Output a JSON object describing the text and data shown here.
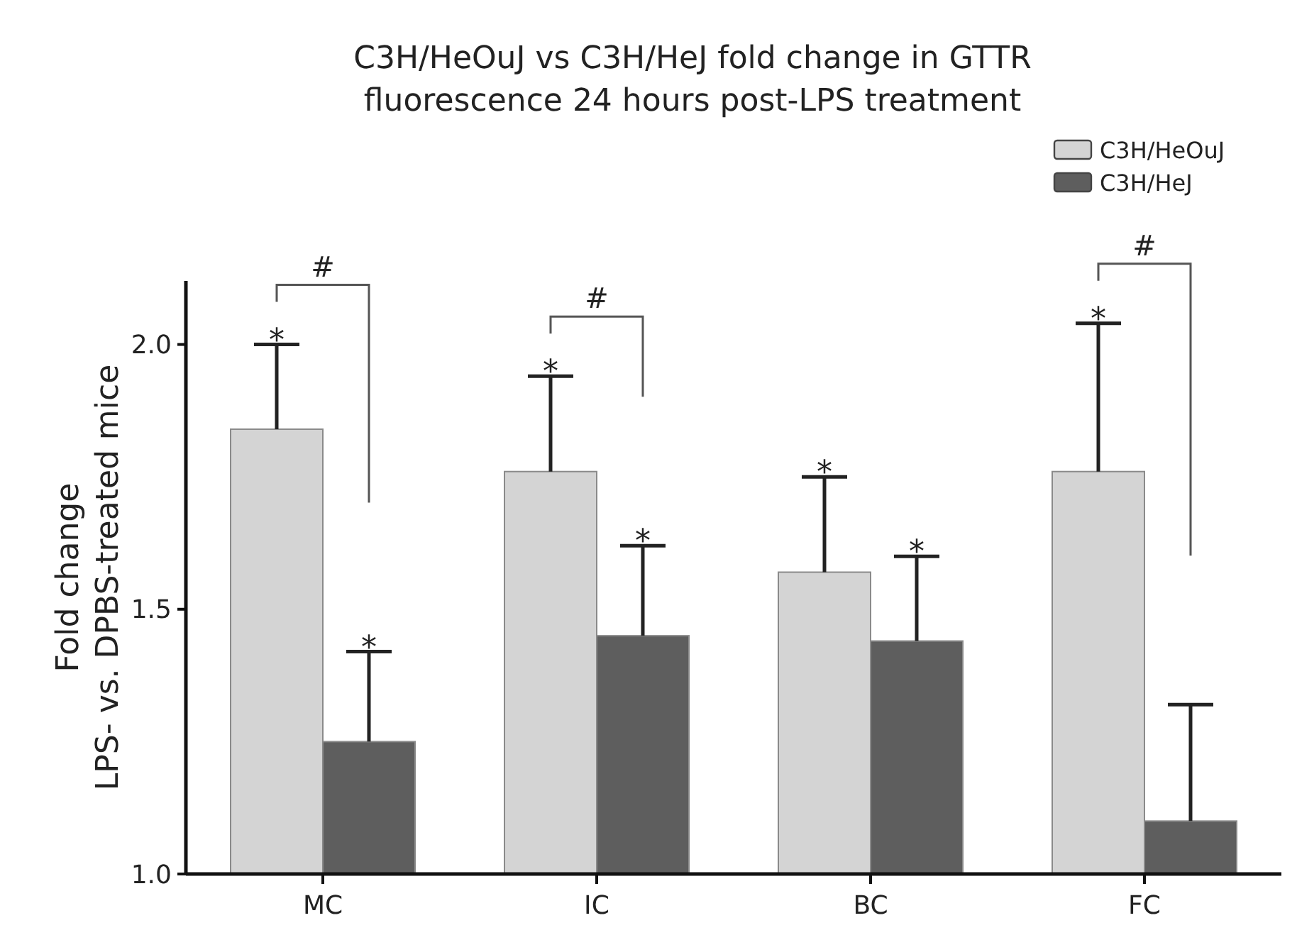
{
  "chart_data": {
    "type": "bar",
    "title": "C3H/HeOuJ vs C3H/HeJ fold change in GTTR\nfluorescence 24 hours post-LPS treatment",
    "ylabel": "Fold change\nLPS- vs. DPBS-treated mice",
    "categories": [
      "MC",
      "IC",
      "BC",
      "FC"
    ],
    "series": [
      {
        "name": "C3H/HeOuJ",
        "color": "#d4d4d4",
        "values": [
          1.84,
          1.76,
          1.57,
          1.76
        ],
        "errors": [
          [
            1.84,
            2.0
          ],
          [
            1.76,
            1.94
          ],
          [
            1.57,
            1.75
          ],
          [
            1.76,
            2.04
          ]
        ]
      },
      {
        "name": "C3H/HeJ",
        "color": "#5e5e5e",
        "values": [
          1.25,
          1.45,
          1.44,
          1.1
        ],
        "errors": [
          [
            1.25,
            1.42
          ],
          [
            1.45,
            1.62
          ],
          [
            1.44,
            1.6
          ],
          [
            1.1,
            1.32
          ]
        ]
      }
    ],
    "annotations": [
      "*",
      "*",
      "*",
      "*",
      "*",
      "*",
      "*",
      "#",
      "#",
      "#"
    ],
    "ylim": [
      1.0,
      2.12
    ],
    "yticks": [
      {
        "value": 1.0,
        "label": "1.0"
      },
      {
        "value": 1.5,
        "label": "1.5"
      },
      {
        "value": 2.0,
        "label": "2.0"
      }
    ],
    "grid": false,
    "legend": "top right"
  }
}
